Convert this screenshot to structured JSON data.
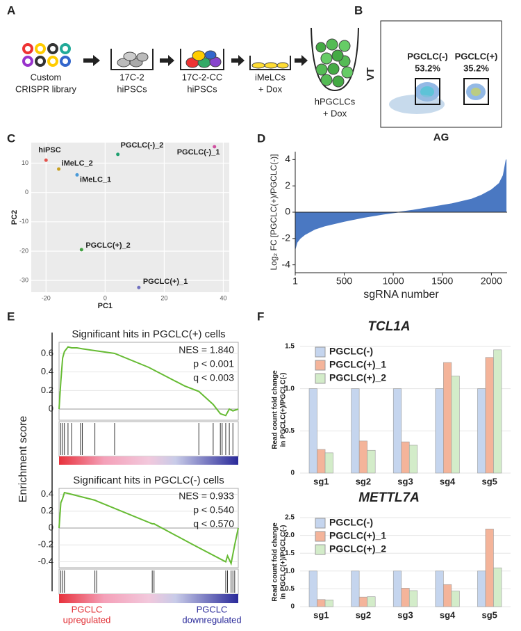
{
  "panel_letters": [
    "A",
    "B",
    "C",
    "D",
    "E",
    "F"
  ],
  "diagram": {
    "steps": [
      [
        "Custom",
        "CRISPR library"
      ],
      [
        "17C-2",
        "hiPSCs"
      ],
      [
        "17C-2-CC",
        "hiPSCs"
      ],
      [
        "iMeLCs",
        "+ Dox"
      ],
      [
        "hPGCLCs",
        "+ Dox"
      ]
    ]
  },
  "panel_e": {
    "ylabel": "Enrichment score",
    "left_label": [
      "PGCLC",
      "upregulated"
    ],
    "right_label": [
      "PGCLC",
      "downregulated"
    ]
  },
  "chart_data": [
    {
      "type": "flow",
      "xlabel": "AG",
      "ylabel": "VT",
      "gates": [
        "PGCLC(-)",
        "PGCLC(+)"
      ],
      "values": [
        53.2,
        35.2
      ],
      "value_labels": [
        "53.2%",
        "35.2%"
      ]
    },
    {
      "type": "scatter",
      "xlabel": "PC1",
      "ylabel": "PC2",
      "labels": [
        "hiPSC",
        "iMeLC_2",
        "iMeLC_1",
        "PGCLC(-)_2",
        "PGCLC(-)_1",
        "PGCLC(+)_2",
        "PGCLC(+)_1"
      ],
      "x": [
        -20,
        -15.7,
        -9.5,
        4.3,
        37,
        -8,
        11.4
      ],
      "values": [
        11,
        8,
        6,
        13,
        15.6,
        -19.5,
        -32.4
      ],
      "colors": [
        "#e4524b",
        "#c8a020",
        "#4a9ad8",
        "#20a070",
        "#d050a0",
        "#40a040",
        "#7070c0"
      ],
      "xlim": [
        -25,
        42
      ],
      "ylim": [
        -34,
        17
      ],
      "xticks": [
        -20,
        0,
        20,
        40
      ],
      "yticks": [
        10,
        0,
        -10,
        -20,
        -30
      ],
      "grid": true
    },
    {
      "type": "area",
      "xlabel": "sgRNA number",
      "ylabel": "Log₂ FC [PGCLC(+)/PGCLC(-)]",
      "color": "#4a78c2",
      "x": [
        1,
        20,
        50,
        100,
        200,
        300,
        500,
        700,
        900,
        1050,
        1200,
        1400,
        1600,
        1800,
        1900,
        2000,
        2080,
        2120,
        2150
      ],
      "values": [
        -2.8,
        -2.3,
        -2.0,
        -1.7,
        -1.3,
        -1.05,
        -0.7,
        -0.4,
        -0.15,
        0,
        0.15,
        0.4,
        0.65,
        1.0,
        1.3,
        1.7,
        2.2,
        2.8,
        4.0
      ],
      "xlim": [
        1,
        2160
      ],
      "ylim": [
        -4.6,
        4.6
      ],
      "xticks": [
        1,
        500,
        1000,
        1500,
        2000
      ],
      "yticks": [
        -4,
        -2,
        0,
        2,
        4
      ]
    },
    {
      "type": "gsea",
      "title": "Significant hits in PGCLC(+) cells",
      "annotations": [
        "NES = 1.840",
        "p < 0.001",
        "q < 0.003"
      ],
      "color": "#66bb33",
      "x": [
        0,
        0.01,
        0.02,
        0.03,
        0.05,
        0.07,
        0.1,
        0.13,
        0.2,
        0.31,
        0.5,
        0.7,
        0.78,
        0.86,
        0.9,
        0.93,
        0.95,
        0.97,
        1.0
      ],
      "values": [
        0,
        0.3,
        0.55,
        0.62,
        0.67,
        0.66,
        0.66,
        0.65,
        0.63,
        0.6,
        0.45,
        0.25,
        0.19,
        0.05,
        -0.05,
        -0.07,
        0.0,
        -0.02,
        0.0
      ],
      "hits": [
        0.01,
        0.02,
        0.03,
        0.05,
        0.07,
        0.12,
        0.13,
        0.2,
        0.31,
        0.78,
        0.86,
        0.9,
        0.91,
        0.93,
        0.95,
        0.97
      ],
      "xlim": [
        0,
        1
      ],
      "ylim": [
        -0.12,
        0.72
      ],
      "yticks": [
        0,
        0.2,
        0.4,
        0.6
      ]
    },
    {
      "type": "gsea",
      "title": "Significant hits in PGCLC(-) cells",
      "annotations": [
        "NES = 0.933",
        "p < 0.540",
        "q < 0.570"
      ],
      "color": "#66bb33",
      "x": [
        0,
        0.01,
        0.02,
        0.03,
        0.05,
        0.2,
        0.21,
        0.52,
        0.53,
        0.75,
        0.93,
        0.94,
        0.96,
        0.98,
        1.0
      ],
      "values": [
        0,
        0.3,
        0.35,
        0.42,
        0.41,
        0.33,
        0.32,
        0.05,
        0.05,
        -0.2,
        -0.4,
        -0.33,
        -0.42,
        -0.2,
        0.0
      ],
      "hits": [
        0.01,
        0.02,
        0.03,
        0.2,
        0.21,
        0.52,
        0.53,
        0.93,
        0.94,
        0.96,
        0.97,
        0.98
      ],
      "xlim": [
        0,
        1
      ],
      "ylim": [
        -0.47,
        0.47
      ],
      "yticks": [
        -0.4,
        -0.2,
        0,
        0.2,
        0.4
      ]
    },
    {
      "type": "groupedbar",
      "title": "TCL1A",
      "ylabel": [
        "Read count fold change",
        "in PGCLC(+)/PGCLC(-)"
      ],
      "categories": [
        "sg1",
        "sg2",
        "sg3",
        "sg4",
        "sg5"
      ],
      "series": [
        {
          "name": "PGCLC(-)",
          "color": "#c5d5ee",
          "values": [
            1,
            1,
            1,
            1,
            1
          ]
        },
        {
          "name": "PGCLC(+)_1",
          "color": "#f4b49a",
          "values": [
            0.28,
            0.38,
            0.37,
            1.31,
            1.37
          ]
        },
        {
          "name": "PGCLC(+)_2",
          "color": "#d3ecc9",
          "values": [
            0.24,
            0.27,
            0.33,
            1.15,
            1.46
          ]
        }
      ],
      "ylim": [
        0,
        1.5
      ],
      "yticks": [
        0,
        0.5,
        {
          "value": 1,
          "label": "1.0"
        },
        1.5
      ],
      "grid": true
    },
    {
      "type": "groupedbar",
      "title": "METTL7A",
      "ylabel": [
        "Read count fold change",
        "in PGCLC(+)/PGCLC(-)"
      ],
      "categories": [
        "sg1",
        "sg2",
        "sg3",
        "sg4",
        "sg5"
      ],
      "series": [
        {
          "name": "PGCLC(-)",
          "color": "#c5d5ee",
          "values": [
            1,
            1,
            1,
            1,
            1
          ]
        },
        {
          "name": "PGCLC(+)_1",
          "color": "#f4b49a",
          "values": [
            0.2,
            0.27,
            0.52,
            0.62,
            2.18
          ]
        },
        {
          "name": "PGCLC(+)_2",
          "color": "#d3ecc9",
          "values": [
            0.19,
            0.28,
            0.45,
            0.44,
            1.09
          ]
        }
      ],
      "ylim": [
        0,
        2.5
      ],
      "yticks": [
        0,
        0.5,
        {
          "value": 1,
          "label": "1.0"
        },
        1.5,
        {
          "value": 2,
          "label": "2.0"
        },
        2.5
      ],
      "grid": true
    }
  ]
}
